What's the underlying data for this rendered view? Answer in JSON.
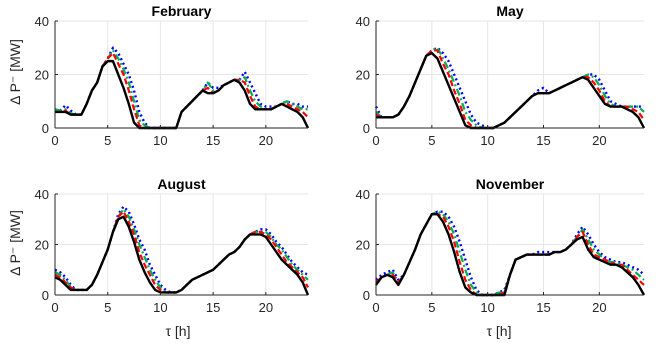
{
  "figure": {
    "ylabel": "Δ P⁻ [MW]",
    "xlabel": "τ [h]"
  },
  "series_style": [
    {
      "color": "#0000ff",
      "dash": "dotted"
    },
    {
      "color": "#00b050",
      "dash": "dashdot"
    },
    {
      "color": "#ff0000",
      "dash": "dashed"
    },
    {
      "color": "#000000",
      "dash": "solid"
    }
  ],
  "chart_data": [
    {
      "type": "line",
      "title": "February",
      "xlim": [
        0,
        24
      ],
      "ylim": [
        0,
        40
      ],
      "xticks": [
        0,
        5,
        10,
        15,
        20
      ],
      "yticks": [
        0,
        20,
        40
      ],
      "grid": true,
      "x": [
        0,
        0.5,
        1,
        1.5,
        2,
        2.5,
        3,
        3.5,
        4,
        4.5,
        5,
        5.5,
        6,
        6.5,
        7,
        7.5,
        8,
        8.5,
        9,
        9.5,
        10,
        10.5,
        11,
        11.5,
        12,
        12.5,
        13,
        13.5,
        14,
        14.5,
        15,
        15.5,
        16,
        16.5,
        17,
        17.5,
        18,
        18.5,
        19,
        19.5,
        20,
        20.5,
        21,
        21.5,
        22,
        22.5,
        23,
        23.5,
        24
      ],
      "series": [
        {
          "values": [
            7,
            6.5,
            8.5,
            6.5,
            5,
            5,
            9,
            14,
            17,
            23,
            26,
            30,
            28,
            24,
            20,
            14,
            6,
            2,
            0,
            0,
            0,
            0,
            0,
            0,
            6,
            8,
            10,
            12,
            14,
            17,
            15,
            15,
            16,
            17,
            18,
            18,
            21,
            17,
            13,
            9,
            8,
            8,
            8,
            9,
            10,
            9,
            9,
            8,
            8
          ]
        },
        {
          "values": [
            7,
            6.5,
            7,
            5.5,
            5,
            5,
            9,
            14,
            17,
            23,
            26,
            29,
            26,
            22,
            17,
            10,
            3,
            1,
            0,
            0,
            0,
            0,
            0,
            0,
            6,
            8,
            10,
            12,
            14,
            17,
            14,
            14,
            16,
            17,
            18,
            18,
            19,
            14,
            10,
            8,
            7,
            7,
            8,
            9,
            10,
            9,
            8,
            7,
            7
          ]
        },
        {
          "values": [
            6,
            6,
            6.5,
            5,
            5,
            5,
            9,
            14,
            17,
            23,
            26,
            28,
            24,
            20,
            14,
            7,
            1,
            0,
            0,
            0,
            0,
            0,
            0,
            0,
            6,
            8,
            10,
            12,
            14,
            15,
            13,
            14,
            16,
            17,
            18,
            18,
            17,
            12,
            8,
            7,
            7,
            7,
            8,
            9,
            9,
            8,
            7,
            6,
            4
          ]
        },
        {
          "values": [
            6,
            6,
            6,
            5,
            5,
            5,
            9,
            14,
            17,
            23,
            25,
            25,
            20,
            15,
            9,
            2,
            0,
            0,
            0,
            0,
            0,
            0,
            0,
            0,
            6,
            8,
            10,
            12,
            14,
            13,
            13,
            14,
            16,
            17,
            18,
            17,
            14,
            9,
            7,
            7,
            7,
            7,
            8,
            9,
            8,
            7,
            6,
            4,
            0
          ]
        }
      ]
    },
    {
      "type": "line",
      "title": "May",
      "xlim": [
        0,
        24
      ],
      "ylim": [
        0,
        40
      ],
      "xticks": [
        0,
        5,
        10,
        15,
        20
      ],
      "yticks": [
        0,
        20,
        40
      ],
      "grid": true,
      "x": [
        0,
        0.5,
        1,
        1.5,
        2,
        2.5,
        3,
        3.5,
        4,
        4.5,
        5,
        5.5,
        6,
        6.5,
        7,
        7.5,
        8,
        8.5,
        9,
        9.5,
        10,
        10.5,
        11,
        11.5,
        12,
        12.5,
        13,
        13.5,
        14,
        14.5,
        15,
        15.5,
        16,
        16.5,
        17,
        17.5,
        18,
        18.5,
        19,
        19.5,
        20,
        20.5,
        21,
        21.5,
        22,
        22.5,
        23,
        23.5,
        24
      ],
      "series": [
        {
          "values": [
            8,
            4,
            4,
            4,
            5,
            8,
            12,
            17,
            22,
            27,
            29,
            30,
            28,
            25,
            20,
            15,
            10,
            5,
            2,
            1,
            0,
            0,
            1,
            2,
            4,
            6,
            8,
            10,
            12,
            14,
            15,
            13,
            14,
            15,
            16,
            17,
            18,
            19,
            20,
            20,
            18,
            14,
            10,
            9,
            8,
            8,
            8,
            8,
            8
          ]
        },
        {
          "values": [
            6,
            4,
            4,
            4,
            5,
            8,
            12,
            17,
            22,
            27,
            29,
            30,
            26,
            22,
            17,
            12,
            6,
            3,
            1,
            0,
            0,
            0,
            1,
            2,
            4,
            6,
            8,
            10,
            12,
            13,
            13,
            13,
            14,
            15,
            16,
            17,
            18,
            19,
            20,
            19,
            16,
            12,
            9,
            8,
            8,
            8,
            8,
            8,
            6
          ]
        },
        {
          "values": [
            5,
            4,
            4,
            4,
            5,
            8,
            12,
            17,
            22,
            27,
            29,
            29,
            24,
            20,
            14,
            9,
            3,
            1,
            0,
            0,
            0,
            0,
            1,
            2,
            4,
            6,
            8,
            10,
            12,
            13,
            13,
            13,
            14,
            15,
            16,
            17,
            18,
            19,
            19,
            17,
            14,
            10,
            8,
            8,
            8,
            8,
            7,
            6,
            3
          ]
        },
        {
          "values": [
            4,
            4,
            4,
            4,
            5,
            8,
            12,
            17,
            22,
            27,
            28,
            26,
            21,
            16,
            11,
            6,
            1,
            0,
            0,
            0,
            0,
            0,
            1,
            2,
            4,
            6,
            8,
            10,
            12,
            13,
            13,
            13,
            14,
            15,
            16,
            17,
            18,
            19,
            18,
            15,
            12,
            9,
            8,
            8,
            8,
            7,
            6,
            4,
            0
          ]
        }
      ]
    },
    {
      "type": "line",
      "title": "August",
      "xlim": [
        0,
        24
      ],
      "ylim": [
        0,
        40
      ],
      "xticks": [
        0,
        5,
        10,
        15,
        20
      ],
      "yticks": [
        0,
        20,
        40
      ],
      "grid": true,
      "x": [
        0,
        0.5,
        1,
        1.5,
        2,
        2.5,
        3,
        3.5,
        4,
        4.5,
        5,
        5.5,
        6,
        6.5,
        7,
        7.5,
        8,
        8.5,
        9,
        9.5,
        10,
        10.5,
        11,
        11.5,
        12,
        12.5,
        13,
        13.5,
        14,
        14.5,
        15,
        15.5,
        16,
        16.5,
        17,
        17.5,
        18,
        18.5,
        19,
        19.5,
        20,
        20.5,
        21,
        21.5,
        22,
        22.5,
        23,
        23.5,
        24
      ],
      "series": [
        {
          "values": [
            10,
            9,
            7,
            4,
            2,
            2,
            2,
            4,
            8,
            13,
            18,
            25,
            32,
            35,
            33,
            28,
            22,
            18,
            12,
            8,
            4,
            2,
            1,
            1,
            2,
            4,
            6,
            7,
            8,
            9,
            10,
            12,
            14,
            16,
            17,
            19,
            22,
            24,
            25,
            26,
            26,
            24,
            21,
            19,
            16,
            13,
            11,
            9,
            8
          ]
        },
        {
          "values": [
            9,
            8,
            6,
            3,
            2,
            2,
            2,
            4,
            8,
            13,
            18,
            25,
            31,
            34,
            31,
            26,
            20,
            15,
            10,
            6,
            3,
            1,
            1,
            1,
            2,
            4,
            6,
            7,
            8,
            9,
            10,
            12,
            14,
            16,
            17,
            19,
            22,
            24,
            25,
            25,
            25,
            23,
            20,
            18,
            15,
            12,
            10,
            8,
            6
          ]
        },
        {
          "values": [
            8,
            7,
            5,
            3,
            2,
            2,
            2,
            4,
            8,
            13,
            18,
            25,
            31,
            33,
            29,
            24,
            17,
            12,
            8,
            4,
            2,
            1,
            1,
            1,
            2,
            4,
            6,
            7,
            8,
            9,
            10,
            12,
            14,
            16,
            17,
            19,
            22,
            24,
            25,
            25,
            24,
            22,
            19,
            16,
            13,
            11,
            9,
            7,
            3
          ]
        },
        {
          "values": [
            7,
            6,
            4,
            2,
            2,
            2,
            2,
            4,
            8,
            13,
            18,
            25,
            30,
            31,
            27,
            21,
            14,
            9,
            5,
            2,
            1,
            1,
            1,
            1,
            2,
            4,
            6,
            7,
            8,
            9,
            10,
            12,
            14,
            16,
            17,
            19,
            22,
            24,
            24,
            24,
            23,
            20,
            17,
            14,
            12,
            10,
            8,
            5,
            0
          ]
        }
      ]
    },
    {
      "type": "line",
      "title": "November",
      "xlim": [
        0,
        24
      ],
      "ylim": [
        0,
        40
      ],
      "xticks": [
        0,
        5,
        10,
        15,
        20
      ],
      "yticks": [
        0,
        20,
        40
      ],
      "grid": true,
      "x": [
        0,
        0.5,
        1,
        1.5,
        2,
        2.5,
        3,
        3.5,
        4,
        4.5,
        5,
        5.5,
        6,
        6.5,
        7,
        7.5,
        8,
        8.5,
        9,
        9.5,
        10,
        10.5,
        11,
        11.5,
        12,
        12.5,
        13,
        13.5,
        14,
        14.5,
        15,
        15.5,
        16,
        16.5,
        17,
        17.5,
        18,
        18.5,
        19,
        19.5,
        20,
        20.5,
        21,
        21.5,
        22,
        22.5,
        23,
        23.5,
        24
      ],
      "series": [
        {
          "values": [
            6,
            8,
            9,
            10,
            6,
            8,
            13,
            18,
            24,
            28,
            32,
            33,
            33,
            31,
            27,
            21,
            14,
            7,
            2,
            0,
            0,
            0,
            1,
            2,
            8,
            14,
            15,
            16,
            16,
            17,
            17,
            17,
            17,
            17,
            18,
            20,
            24,
            27,
            24,
            20,
            17,
            15,
            14,
            13,
            13,
            12,
            11,
            10,
            8
          ]
        },
        {
          "values": [
            5,
            7,
            8,
            9,
            5,
            8,
            13,
            18,
            24,
            28,
            32,
            33,
            32,
            29,
            24,
            17,
            10,
            4,
            1,
            0,
            0,
            0,
            1,
            1,
            8,
            14,
            15,
            16,
            16,
            16,
            16,
            16,
            17,
            17,
            18,
            20,
            23,
            26,
            22,
            18,
            16,
            14,
            13,
            13,
            12,
            11,
            10,
            8,
            6
          ]
        },
        {
          "values": [
            5,
            7,
            8,
            8,
            5,
            8,
            13,
            18,
            24,
            28,
            32,
            32,
            31,
            27,
            21,
            13,
            6,
            2,
            0,
            0,
            0,
            0,
            0,
            1,
            8,
            14,
            15,
            16,
            16,
            16,
            16,
            16,
            17,
            17,
            18,
            20,
            23,
            25,
            20,
            16,
            15,
            14,
            13,
            12,
            12,
            10,
            8,
            6,
            4
          ]
        },
        {
          "values": [
            4,
            7,
            8,
            7,
            4,
            8,
            13,
            18,
            24,
            28,
            32,
            32,
            29,
            24,
            17,
            9,
            3,
            1,
            0,
            0,
            0,
            0,
            0,
            0,
            8,
            14,
            15,
            16,
            16,
            16,
            16,
            16,
            17,
            17,
            18,
            20,
            22,
            23,
            18,
            15,
            14,
            13,
            12,
            12,
            11,
            9,
            7,
            4,
            0
          ]
        }
      ]
    }
  ]
}
